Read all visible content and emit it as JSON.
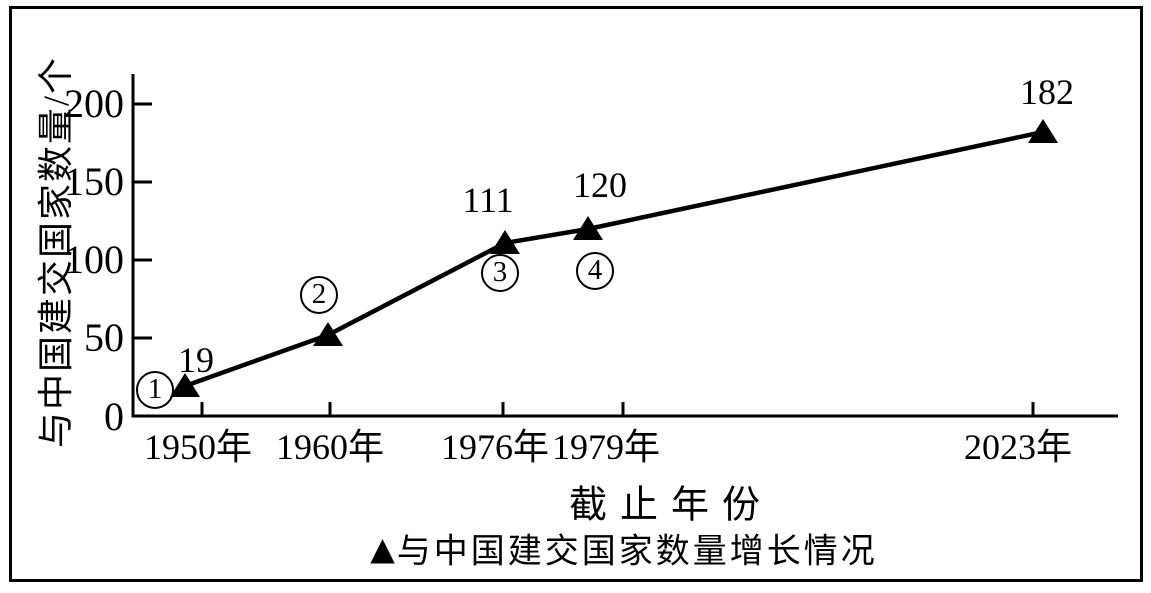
{
  "chart_data": {
    "type": "line",
    "title": "",
    "xlabel": "截止年份",
    "ylabel": "与中国建交国家数量/个",
    "categories": [
      "1950年",
      "1960年",
      "1976年",
      "1979年",
      "2023年"
    ],
    "series": [
      {
        "name": "与中国建交国家数量增长情况",
        "values": [
          19,
          52,
          111,
          120,
          182
        ]
      }
    ],
    "point_value_labels": [
      "19",
      "",
      "111",
      "120",
      "182"
    ],
    "stage_markers": [
      "1",
      "2",
      "3",
      "4",
      ""
    ],
    "ytick_labels": [
      "0",
      "50",
      "100",
      "150",
      "200"
    ],
    "ylim": [
      0,
      200
    ],
    "grid": false,
    "marker_shape": "filled-triangle-up",
    "legend": {
      "marker": "▲",
      "label": "与中国建交国家数量增长情况",
      "position": "bottom"
    },
    "colors": {
      "line": "#000000",
      "text": "#000000",
      "background": "#ffffff",
      "frame": "#000000"
    }
  }
}
